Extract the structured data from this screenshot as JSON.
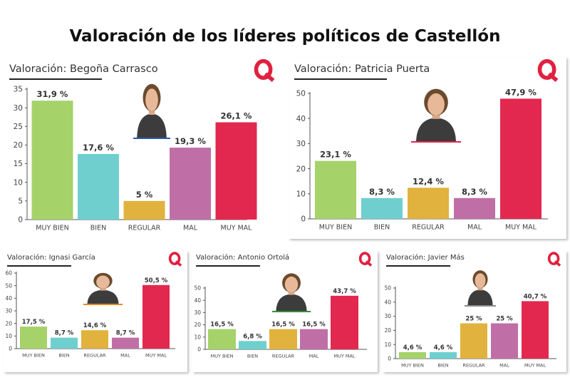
{
  "page": {
    "title": "Valoración de los líderes políticos de Castellón"
  },
  "colors": {
    "muy_bien": "#a6d26a",
    "bien": "#6fcfcf",
    "regular": "#e1b23d",
    "mal": "#bf6fa6",
    "muy_mal": "#e2284f",
    "logo": "#e0213f",
    "axis": "#555555"
  },
  "chart_data": [
    {
      "id": "begona",
      "type": "bar",
      "title": "Valoración: Begoña Carrasco",
      "categories": [
        "MUY BIEN",
        "BIEN",
        "REGULAR",
        "MAL",
        "MUY MAL"
      ],
      "values": [
        31.9,
        17.6,
        5,
        19.3,
        26.1
      ],
      "data_labels": [
        "31,9 %",
        "17,6 %",
        "5 %",
        "19,3 %",
        "26,1 %"
      ],
      "ylim": [
        0,
        35
      ],
      "yticks": [
        0,
        5,
        10,
        15,
        20,
        25,
        30,
        35
      ],
      "photo_icon": "person-photo-icon"
    },
    {
      "id": "patricia",
      "type": "bar",
      "title": "Valoración: Patricia Puerta",
      "categories": [
        "MUY BIEN",
        "BIEN",
        "REGULAR",
        "MAL",
        "MUY MAL"
      ],
      "values": [
        23.1,
        8.3,
        12.4,
        8.3,
        47.9
      ],
      "data_labels": [
        "23,1 %",
        "8,3 %",
        "12,4 %",
        "8,3 %",
        "47,9 %"
      ],
      "ylim": [
        0,
        50
      ],
      "yticks": [
        0,
        10,
        20,
        30,
        40,
        50
      ],
      "photo_icon": "person-photo-icon"
    },
    {
      "id": "ignasi",
      "type": "bar",
      "title": "Valoración: Ignasi García",
      "categories": [
        "MUY BIEN",
        "BIEN",
        "REGULAR",
        "MAL",
        "MUY MAL"
      ],
      "values": [
        17.5,
        8.7,
        14.6,
        8.7,
        50.5
      ],
      "data_labels": [
        "17,5 %",
        "8,7 %",
        "14,6 %",
        "8,7 %",
        "50,5 %"
      ],
      "ylim": [
        0,
        60
      ],
      "yticks": [
        0,
        10,
        20,
        30,
        40,
        50,
        60
      ],
      "photo_icon": "person-photo-icon"
    },
    {
      "id": "antonio",
      "type": "bar",
      "title": "Valoración: Antonio Ortolá",
      "categories": [
        "MUY BIEN",
        "BIEN",
        "REGULAR",
        "MAL",
        "MUY MAL"
      ],
      "values": [
        16.5,
        6.8,
        16.5,
        16.5,
        43.7
      ],
      "data_labels": [
        "16,5 %",
        "6,8 %",
        "16,5 %",
        "16,5 %",
        "43,7 %"
      ],
      "ylim": [
        0,
        50
      ],
      "yticks": [
        0,
        10,
        20,
        30,
        40,
        50
      ],
      "photo_icon": "person-photo-icon"
    },
    {
      "id": "javier",
      "type": "bar",
      "title": "Valoración: Javier Más",
      "categories": [
        "MUY BIEN",
        "BIEN",
        "REGULAR",
        "MAL",
        "MUY MAL"
      ],
      "values": [
        4.6,
        4.6,
        25,
        25,
        40.7
      ],
      "data_labels": [
        "4,6 %",
        "4,6 %",
        "25 %",
        "25 %",
        "40,7 %"
      ],
      "ylim": [
        0,
        50
      ],
      "yticks": [
        0,
        10,
        20,
        30,
        40,
        50
      ],
      "photo_icon": "person-photo-icon"
    }
  ]
}
